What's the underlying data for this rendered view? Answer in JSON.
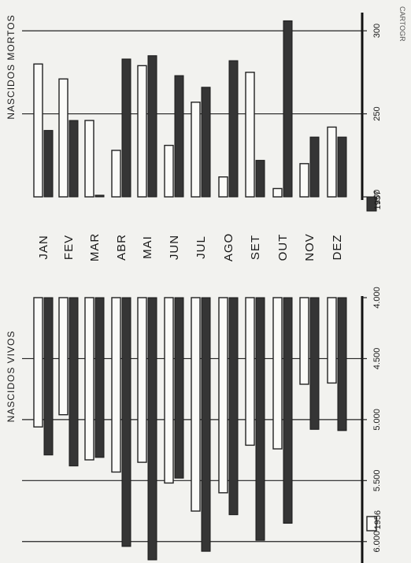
{
  "chart_data": [
    {
      "type": "bar",
      "title": "NASCIDOS MORTOS",
      "categories": [
        "JAN",
        "FEV",
        "MAR",
        "ABR",
        "MAI",
        "JUN",
        "JUL",
        "AGO",
        "SET",
        "OUT",
        "NOV",
        "DEZ"
      ],
      "axis_ticks": [
        "200",
        "250",
        "300"
      ],
      "xlim": [
        200,
        310
      ],
      "series": [
        {
          "name": "1956",
          "values": [
            280,
            271,
            246,
            228,
            279,
            231,
            257,
            212,
            275,
            205,
            220,
            242
          ]
        },
        {
          "name": "1957",
          "values": [
            240,
            246,
            201,
            283,
            285,
            273,
            266,
            282,
            222,
            306,
            236,
            236
          ]
        }
      ]
    },
    {
      "type": "bar",
      "title": "NASCIDOS VIVOS",
      "categories": [
        "JAN",
        "FEV",
        "MAR",
        "ABR",
        "MAI",
        "JUN",
        "JUL",
        "AGO",
        "SET",
        "OUT",
        "NOV",
        "DEZ"
      ],
      "axis_ticks": [
        "4.000",
        "4.500",
        "5.000",
        "5.500",
        "6.000"
      ],
      "xlim": [
        4000,
        6150
      ],
      "series": [
        {
          "name": "1956",
          "values": [
            5060,
            4960,
            5330,
            5430,
            5350,
            5520,
            5750,
            5600,
            5210,
            5240,
            4710,
            4700
          ]
        },
        {
          "name": "1957",
          "values": [
            5290,
            5380,
            5310,
            6040,
            6150,
            5480,
            6080,
            5780,
            5990,
            5850,
            5080,
            5090
          ]
        }
      ]
    }
  ],
  "legend": [
    {
      "label": "1956",
      "color": "#fbfbf8"
    },
    {
      "label": "1957",
      "color": "#353535"
    }
  ],
  "credit": "CARTOGR"
}
